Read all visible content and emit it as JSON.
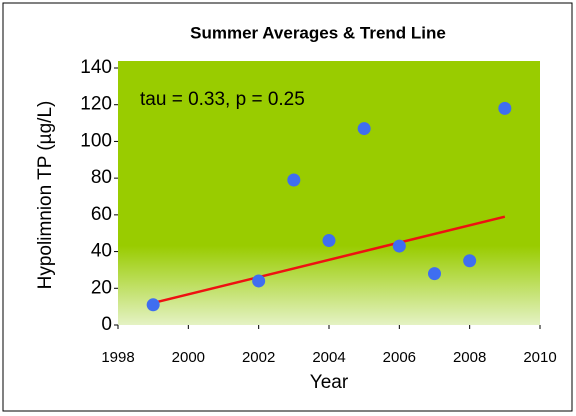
{
  "chart_data": {
    "type": "scatter",
    "title": "Summer Averages  & Trend  Line",
    "xlabel": "Year",
    "ylabel": "Hypolimnion TP  (µg/L)",
    "annotation": "tau = 0.33, p = 0.25",
    "x": [
      1999,
      2002,
      2003,
      2004,
      2005,
      2006,
      2007,
      2008,
      2009
    ],
    "values": [
      11,
      24,
      79,
      46,
      107,
      43,
      28,
      35,
      118
    ],
    "color": "#3f6ef0",
    "trend_line": {
      "x": [
        1999,
        2009
      ],
      "values": [
        12,
        59
      ],
      "color": "#ee1111"
    },
    "xlim": [
      1998,
      2010
    ],
    "xticks": [
      1998,
      2000,
      2002,
      2004,
      2006,
      2008,
      2010
    ],
    "ylim": [
      0,
      140
    ],
    "yticks": [
      0,
      20,
      40,
      60,
      80,
      100,
      120,
      140
    ]
  }
}
